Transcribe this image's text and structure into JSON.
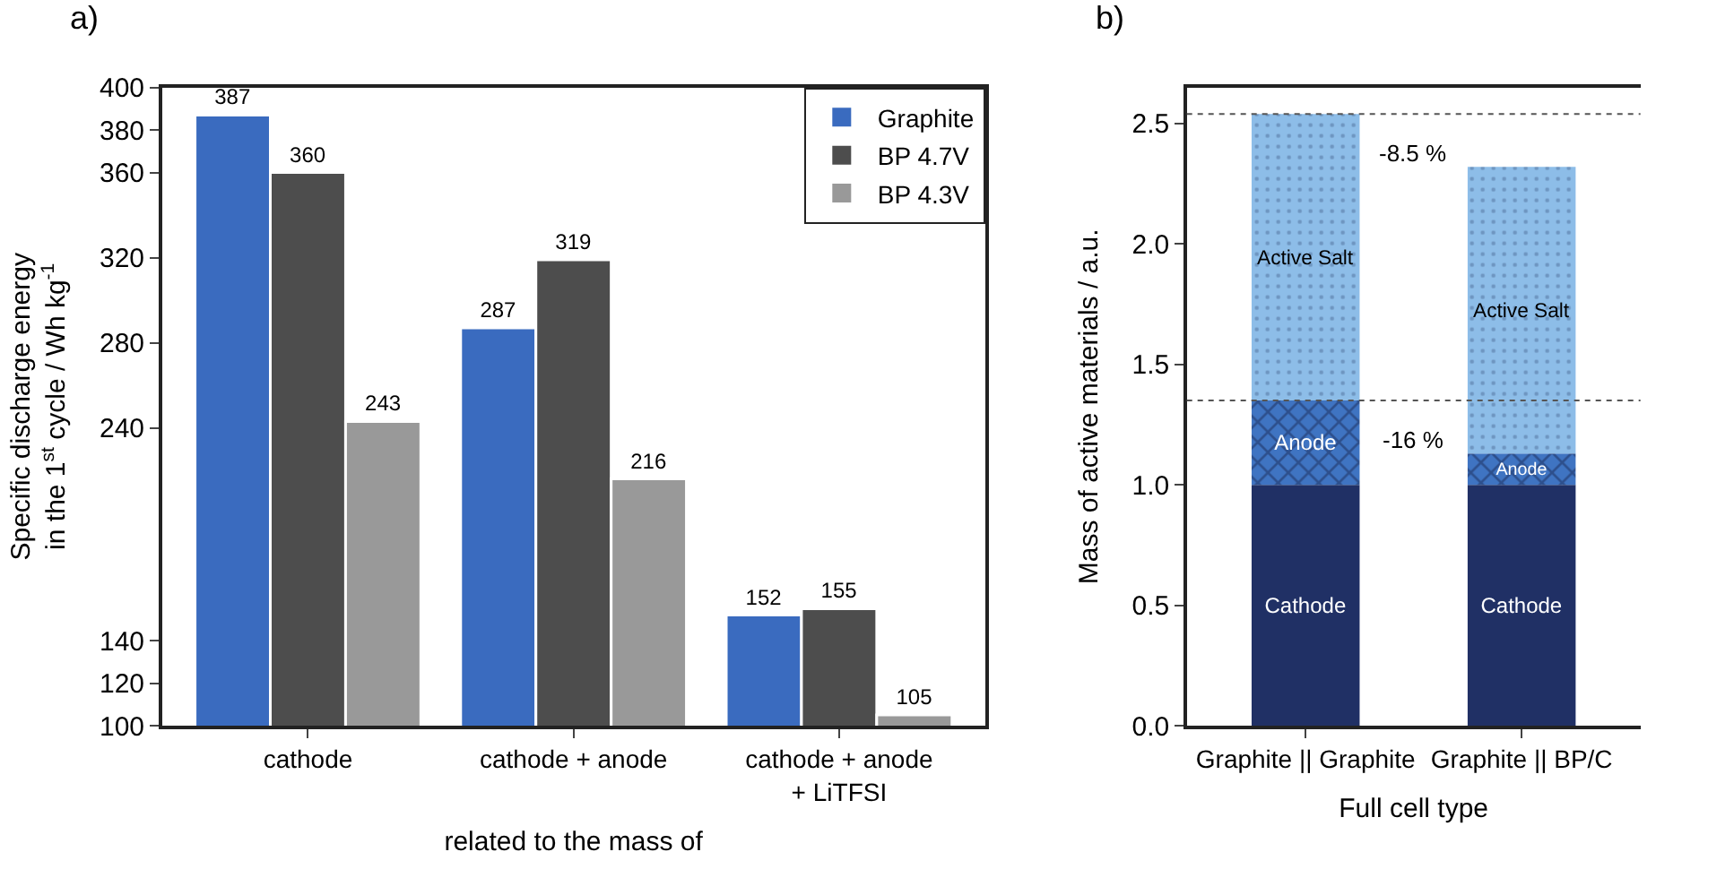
{
  "chart_data": [
    {
      "type": "bar",
      "title": "a)",
      "ylabel": "Specific discharge energy\nin the 1$^{st}$ cycle / Wh kg$^{-1}$",
      "xlabel": "related to the mass of",
      "categories": [
        "cathode",
        "cathode + anode",
        "cathode + anode\n+ LiTFSI"
      ],
      "series": [
        {
          "name": "Graphite",
          "color": "#3a6bbf",
          "values": [
            387,
            287,
            152
          ]
        },
        {
          "name": "BP 4.7V",
          "color": "#4d4d4d",
          "values": [
            360,
            319,
            155
          ]
        },
        {
          "name": "BP 4.3V",
          "color": "#999999",
          "values": [
            243,
            216,
            105
          ]
        }
      ],
      "ylim": [
        100,
        400
      ],
      "yticks": [
        100,
        120,
        140,
        240,
        280,
        320,
        360,
        380,
        400
      ],
      "data_labels": true,
      "legend": "top right"
    },
    {
      "type": "bar",
      "stacked": true,
      "title": "b)",
      "ylabel": "Mass of active materials / a.u.",
      "xlabel": "Full cell type",
      "categories": [
        "Graphite || Graphite",
        "Graphite || BP/C"
      ],
      "series": [
        {
          "name": "Cathode",
          "color": "#203065",
          "values": [
            1.0,
            1.0
          ]
        },
        {
          "name": "Anode",
          "color": "#3f74c2",
          "values": [
            0.35,
            0.13
          ]
        },
        {
          "name": "Active Salt",
          "color": "#8dbde8",
          "values": [
            1.19,
            1.19
          ]
        }
      ],
      "ylim": [
        0,
        2.65
      ],
      "yticks": [
        {
          "value": 0,
          "label": "0.0"
        },
        {
          "value": 0.5,
          "label": "0.5"
        },
        {
          "value": 1,
          "label": "1.0"
        },
        {
          "value": 1.5,
          "label": "1.5"
        },
        {
          "value": 2,
          "label": "2.0"
        },
        {
          "value": 2.5,
          "label": "2.5"
        }
      ],
      "ref_lines": [
        {
          "axis": "y",
          "value": 2.54,
          "color": "#555555",
          "line_style": "dotted"
        },
        {
          "axis": "y",
          "value": 1.35,
          "color": "#555555",
          "line_style": "dotted"
        }
      ],
      "annotations": [
        "-8.5 %",
        "-16 %"
      ]
    }
  ]
}
